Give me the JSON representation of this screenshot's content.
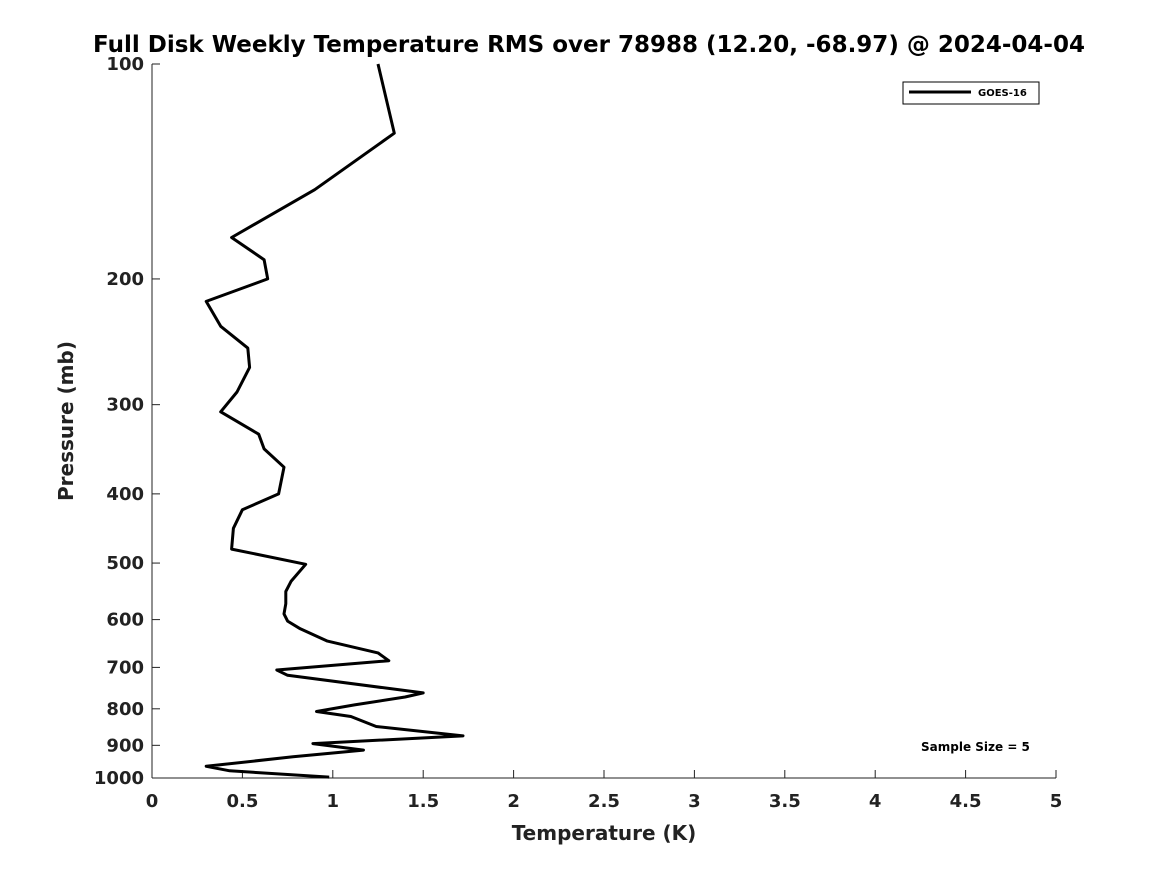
{
  "chart_data": {
    "type": "line",
    "title": "Full Disk Weekly Temperature RMS over 78988 (12.20, -68.97) @ 2024-04-04",
    "xlabel": "Temperature (K)",
    "ylabel": "Pressure (mb)",
    "xlim": [
      0,
      5
    ],
    "ylim": [
      100,
      1000
    ],
    "y_scale": "log",
    "y_reversed": true,
    "xticks": [
      "0",
      "0.5",
      "1",
      "1.5",
      "2",
      "2.5",
      "3",
      "3.5",
      "4",
      "4.5",
      "5"
    ],
    "yticks": [
      "100",
      "200",
      "300",
      "400",
      "500",
      "600",
      "700",
      "800",
      "900",
      "1000"
    ],
    "grid": false,
    "legend_position": "top-right",
    "series": [
      {
        "name": "GOES-16",
        "color": "#000000",
        "points": [
          [
            1.25,
            100
          ],
          [
            1.34,
            125
          ],
          [
            0.9,
            150
          ],
          [
            0.44,
            175
          ],
          [
            0.62,
            188
          ],
          [
            0.64,
            200
          ],
          [
            0.3,
            215
          ],
          [
            0.38,
            233
          ],
          [
            0.53,
            250
          ],
          [
            0.54,
            266
          ],
          [
            0.47,
            288
          ],
          [
            0.38,
            307
          ],
          [
            0.59,
            330
          ],
          [
            0.62,
            346
          ],
          [
            0.73,
            367
          ],
          [
            0.7,
            400
          ],
          [
            0.5,
            421
          ],
          [
            0.45,
            447
          ],
          [
            0.44,
            478
          ],
          [
            0.85,
            502
          ],
          [
            0.77,
            530
          ],
          [
            0.74,
            548
          ],
          [
            0.74,
            570
          ],
          [
            0.73,
            589
          ],
          [
            0.75,
            603
          ],
          [
            0.82,
            618
          ],
          [
            0.97,
            643
          ],
          [
            1.25,
            668
          ],
          [
            1.31,
            685
          ],
          [
            0.69,
            706
          ],
          [
            0.75,
            718
          ],
          [
            1.5,
            760
          ],
          [
            1.4,
            770
          ],
          [
            1.12,
            790
          ],
          [
            0.91,
            807
          ],
          [
            1.1,
            820
          ],
          [
            1.24,
            847
          ],
          [
            1.72,
            873
          ],
          [
            0.89,
            895
          ],
          [
            1.17,
            914
          ],
          [
            0.78,
            934
          ],
          [
            0.3,
            963
          ],
          [
            0.43,
            977
          ],
          [
            0.98,
            997
          ]
        ]
      }
    ],
    "annotations": [
      "Sample Size = 5"
    ]
  }
}
